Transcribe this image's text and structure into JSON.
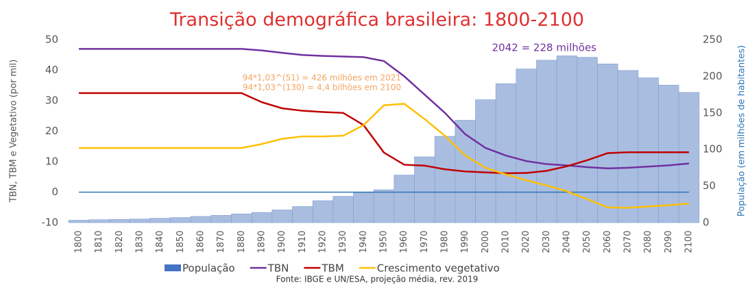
{
  "chart_data": {
    "type": "combo",
    "title": "Transição demográfica brasileira: 1800-2100",
    "ylabel": "TBN, TBM e Vegetativo (por mil)",
    "y2label": "População (em milhões de habitantes)",
    "source": "Fonte: IBGE e UN/ESA, projeção média, rev. 2019",
    "annotations": [
      "2042 = 228 milhões",
      "94*1,03^(51) = 426 milhões em 2021",
      "94*1,03^(130) = 4,4 bilhões em 2100"
    ],
    "categories": [
      "1800",
      "1810",
      "1820",
      "1830",
      "1840",
      "1850",
      "1860",
      "1870",
      "1880",
      "1890",
      "1900",
      "1910",
      "1920",
      "1930",
      "1940",
      "1950",
      "1960",
      "1970",
      "1980",
      "1990",
      "2000",
      "2010",
      "2020",
      "2030",
      "2040",
      "2050",
      "2060",
      "2070",
      "2080",
      "2090",
      "2100"
    ],
    "ylim": [
      -10,
      50
    ],
    "yticks": [
      -10,
      0,
      10,
      20,
      30,
      40,
      50
    ],
    "y2lim": [
      0,
      250
    ],
    "y2ticks": [
      0,
      50,
      100,
      150,
      200,
      250
    ],
    "series": [
      {
        "name": "População",
        "type": "bar",
        "axis": "y2",
        "color": "#a9bde0",
        "values": [
          3.3,
          4,
          4.5,
          5,
          6,
          7,
          8.5,
          10,
          12,
          14,
          17.4,
          22,
          30,
          36,
          41,
          45,
          65,
          90,
          118,
          140,
          168,
          190,
          210,
          222,
          228,
          226,
          217,
          208,
          198,
          188,
          178
        ]
      },
      {
        "name": "TBN",
        "type": "line",
        "color": "#7030a0",
        "values": [
          47,
          47,
          47,
          47,
          47,
          47,
          47,
          47,
          47,
          46.5,
          45.7,
          45,
          44.7,
          44.5,
          44.3,
          43,
          38,
          32,
          26,
          19,
          14.5,
          12,
          10.2,
          9.2,
          8.8,
          8.2,
          7.8,
          8,
          8.4,
          8.8,
          9.4
        ]
      },
      {
        "name": "TBM",
        "type": "line",
        "color": "#c00000",
        "values": [
          32.5,
          32.5,
          32.5,
          32.5,
          32.5,
          32.5,
          32.5,
          32.5,
          32.5,
          29.5,
          27.5,
          26.7,
          26.3,
          26,
          22,
          13,
          9,
          8.7,
          7.5,
          6.8,
          6.5,
          6.2,
          6.3,
          7,
          8.5,
          10.5,
          12.8,
          13.1,
          13.1,
          13.1,
          13.1
        ]
      },
      {
        "name": "Crescimento vegetativo",
        "type": "line",
        "color": "#ffc000",
        "values": [
          14.5,
          14.5,
          14.5,
          14.5,
          14.5,
          14.5,
          14.5,
          14.5,
          14.5,
          15.8,
          17.5,
          18.3,
          18.3,
          18.5,
          22,
          28.5,
          29,
          24,
          18.5,
          12,
          8,
          5.8,
          3.9,
          2.2,
          0.3,
          -2.3,
          -5,
          -5.1,
          -4.7,
          -4.3,
          -3.7
        ]
      }
    ]
  }
}
